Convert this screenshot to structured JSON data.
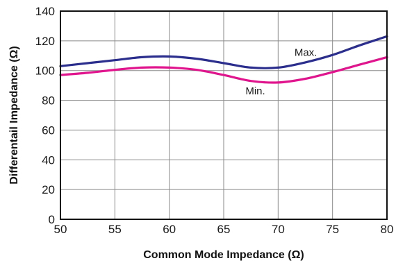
{
  "chart_data": {
    "type": "line",
    "xlabel": "Common Mode Impedance (Ω)",
    "ylabel": "Differentail Impedance (Ω)",
    "xlim": [
      50,
      80
    ],
    "ylim": [
      0,
      140
    ],
    "x_ticks": [
      50,
      55,
      60,
      65,
      70,
      75,
      80
    ],
    "y_ticks": [
      0,
      20,
      40,
      60,
      80,
      100,
      120,
      140
    ],
    "grid": true,
    "legend": "none",
    "series": [
      {
        "name": "Max.",
        "color": "#2b2e8c",
        "x": [
          50,
          52.5,
          55,
          57.5,
          60,
          62.5,
          65,
          67.5,
          70,
          72.5,
          75,
          77.5,
          80
        ],
        "values": [
          103,
          105,
          107,
          109,
          109.5,
          108,
          105,
          102,
          102,
          105.5,
          110.5,
          117,
          123
        ]
      },
      {
        "name": "Min.",
        "color": "#e0148c",
        "x": [
          50,
          52.5,
          55,
          57.5,
          60,
          62.5,
          65,
          67.5,
          70,
          72.5,
          75,
          77.5,
          80
        ],
        "values": [
          97,
          98.5,
          100.5,
          102,
          102,
          100.5,
          97,
          93,
          92,
          94.5,
          99,
          104,
          109
        ]
      }
    ],
    "annotations": [
      {
        "text": "Max.",
        "x": 71.5,
        "y": 110
      },
      {
        "text": "Min.",
        "x": 67,
        "y": 84
      }
    ]
  }
}
